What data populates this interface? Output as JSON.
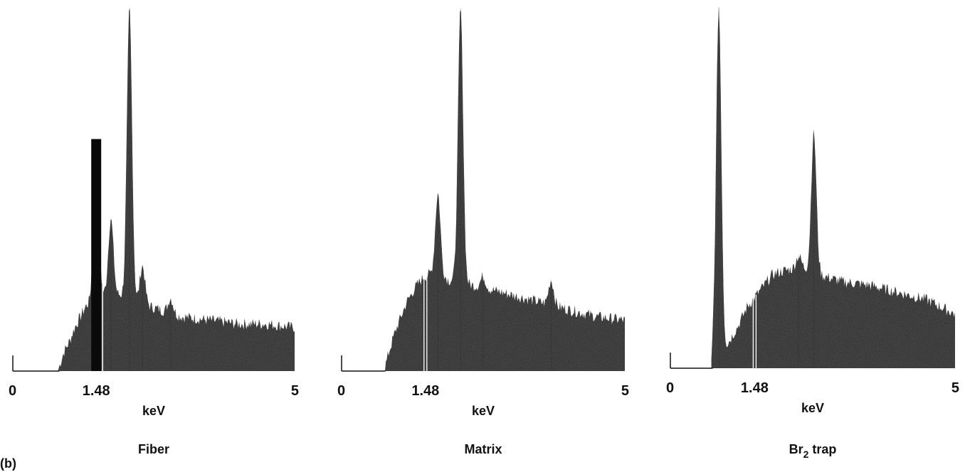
{
  "figure_label": "(b)",
  "chart_data": [
    {
      "type": "area",
      "name": "Fiber",
      "xlabel": "keV",
      "xlim": [
        0,
        5
      ],
      "ylim": [
        0,
        100
      ],
      "x_ticks": [
        {
          "value": 0,
          "label": "0"
        },
        {
          "value": 1.48,
          "label": "1.48"
        },
        {
          "value": 5,
          "label": "5"
        }
      ],
      "peaks": [
        {
          "energy": 1.48,
          "height": 64
        },
        {
          "energy": 1.74,
          "height": 42
        },
        {
          "energy": 2.07,
          "height": 100
        },
        {
          "energy": 2.3,
          "height": 29
        },
        {
          "energy": 2.8,
          "height": 20
        }
      ],
      "spectrum": {
        "x": [
          0.8,
          0.9,
          1.0,
          1.1,
          1.2,
          1.3,
          1.45,
          1.6,
          1.75,
          1.9,
          2.0,
          2.2,
          2.4,
          2.6,
          3.0,
          3.5,
          4.0,
          4.5,
          5.0
        ],
        "y": [
          0,
          5,
          8,
          12,
          15,
          18,
          20,
          21,
          21,
          21,
          20,
          19,
          18,
          17,
          15,
          14,
          13,
          13,
          12
        ]
      },
      "marker": {
        "energy": 1.48,
        "style": "filled"
      }
    },
    {
      "type": "area",
      "name": "Matrix",
      "xlabel": "keV",
      "xlim": [
        0,
        5
      ],
      "ylim": [
        0,
        100
      ],
      "x_ticks": [
        {
          "value": 0,
          "label": "0"
        },
        {
          "value": 1.48,
          "label": "1.48"
        },
        {
          "value": 5,
          "label": "5"
        }
      ],
      "peaks": [
        {
          "energy": 1.7,
          "height": 49
        },
        {
          "energy": 2.1,
          "height": 100
        },
        {
          "energy": 3.7,
          "height": 25
        },
        {
          "energy": 2.5,
          "height": 26
        }
      ],
      "spectrum": {
        "x": [
          0.75,
          0.85,
          0.95,
          1.05,
          1.15,
          1.3,
          1.45,
          1.6,
          1.8,
          1.9,
          2.0,
          2.2,
          2.5,
          3.0,
          3.5,
          4.0,
          4.5,
          5.0
        ],
        "y": [
          0,
          6,
          11,
          15,
          19,
          23,
          26,
          27,
          26,
          25,
          25,
          24,
          23,
          21,
          19,
          17,
          15,
          14
        ]
      },
      "marker": {
        "energy": 1.48,
        "style": "outline"
      }
    },
    {
      "type": "area",
      "name": "Br2 trap",
      "name_main": "Br",
      "name_sub": "2",
      "name_suffix": " trap",
      "xlabel": "keV",
      "xlim": [
        0,
        5
      ],
      "ylim": [
        0,
        100
      ],
      "x_ticks": [
        {
          "value": 0,
          "label": "0"
        },
        {
          "value": 1.48,
          "label": "1.48"
        },
        {
          "value": 5,
          "label": "5"
        }
      ],
      "peaks": [
        {
          "energy": 0.85,
          "height": 100
        },
        {
          "energy": 2.52,
          "height": 65
        },
        {
          "energy": 2.25,
          "height": 31
        }
      ],
      "spectrum": {
        "x": [
          0.72,
          0.75,
          0.95,
          1.05,
          1.2,
          1.35,
          1.5,
          1.65,
          1.8,
          2.0,
          2.3,
          2.6,
          3.0,
          3.5,
          4.0,
          4.5,
          5.0
        ],
        "y": [
          0,
          6,
          5,
          8,
          12,
          17,
          20,
          23,
          26,
          27,
          28,
          26,
          24,
          23,
          21,
          19,
          15
        ]
      },
      "marker": {
        "energy": 1.48,
        "style": "outline"
      }
    }
  ]
}
